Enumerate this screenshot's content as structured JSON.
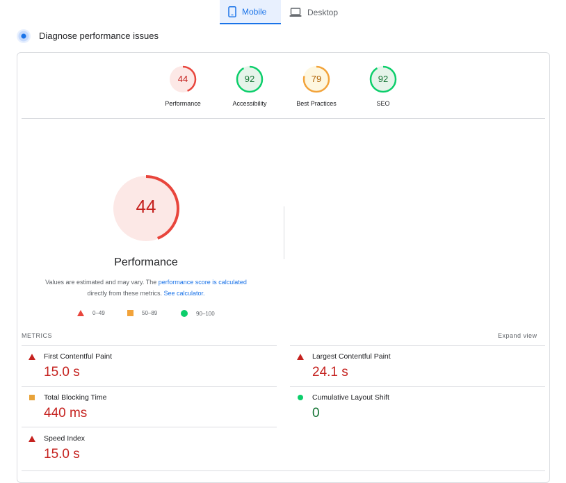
{
  "tabs": [
    {
      "label": "Mobile",
      "icon": "phone-icon",
      "active": true
    },
    {
      "label": "Desktop",
      "icon": "laptop-icon",
      "active": false
    }
  ],
  "diagnose": {
    "title": "Diagnose performance issues"
  },
  "scores": [
    {
      "label": "Performance",
      "value": "44",
      "fraction": 0.44,
      "color": "#e8453c",
      "fill": "#fce8e6",
      "text": "#c5221f"
    },
    {
      "label": "Accessibility",
      "value": "92",
      "fraction": 0.92,
      "color": "#0cce6b",
      "fill": "#e6f4ea",
      "text": "#137333"
    },
    {
      "label": "Best Practices",
      "value": "79",
      "fraction": 0.79,
      "color": "#f2a33a",
      "fill": "#fef7e0",
      "text": "#b06000"
    },
    {
      "label": "SEO",
      "value": "92",
      "fraction": 0.92,
      "color": "#0cce6b",
      "fill": "#e6f4ea",
      "text": "#137333"
    }
  ],
  "performance": {
    "score": "44",
    "fraction": 0.44,
    "title": "Performance",
    "note_prefix": "Values are estimated and may vary. The",
    "note_link1": "performance score is calculated",
    "note_middle": "directly from these metrics.",
    "note_link2": "See calculator."
  },
  "legend": [
    {
      "shape": "triangle",
      "range": "0–49",
      "color": "#e8453c"
    },
    {
      "shape": "square",
      "range": "50–89",
      "color": "#f2a33a"
    },
    {
      "shape": "circle",
      "range": "90–100",
      "color": "#0cce6b"
    }
  ],
  "metrics": {
    "heading": "METRICS",
    "expand_label": "Expand view",
    "items": [
      {
        "label": "First Contentful Paint",
        "value": "15.0 s",
        "status": "fail"
      },
      {
        "label": "Largest Contentful Paint",
        "value": "24.1 s",
        "status": "fail"
      },
      {
        "label": "Total Blocking Time",
        "value": "440 ms",
        "status": "average"
      },
      {
        "label": "Cumulative Layout Shift",
        "value": "0",
        "status": "pass"
      },
      {
        "label": "Speed Index",
        "value": "15.0 s",
        "status": "fail"
      }
    ]
  },
  "colors": {
    "accent": "#1a73e8",
    "fail": "#c5221f",
    "average": "#e8a33a",
    "pass": "#0cce6b",
    "pass_text": "#137333"
  }
}
